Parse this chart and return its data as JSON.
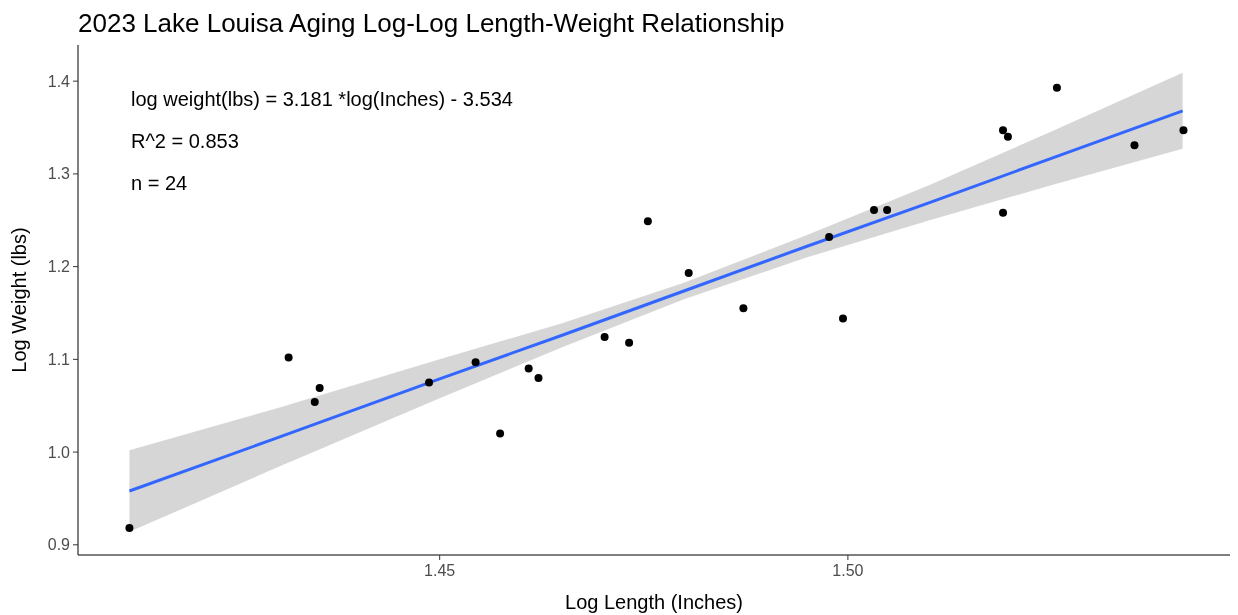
{
  "chart_data": {
    "type": "scatter",
    "title": "2023 Lake Louisa Aging Log-Log Length-Weight Relationship",
    "xlabel": "Log Length (Inches)",
    "ylabel": "Log Weight (lbs)",
    "annotations": [
      "log weight(lbs) = 3.181 *log(Inches) - 3.534",
      "R^2 = 0.853",
      "n = 24"
    ],
    "xlim": [
      1.4057,
      1.5468
    ],
    "ylim": [
      0.889,
      1.439
    ],
    "xticks": [
      {
        "value": 1.45,
        "label": "1.45"
      },
      {
        "value": 1.5,
        "label": "1.50"
      }
    ],
    "yticks": [
      {
        "value": 0.9,
        "label": "0.9"
      },
      {
        "value": 1.0,
        "label": "1.0"
      },
      {
        "value": 1.1,
        "label": "1.1"
      },
      {
        "value": 1.2,
        "label": "1.2"
      },
      {
        "value": 1.3,
        "label": "1.3"
      },
      {
        "value": 1.4,
        "label": "1.4"
      }
    ],
    "grid": false,
    "marker": "circle",
    "series": [
      {
        "type": "line",
        "color": "#3366ff",
        "x": [
          1.412,
          1.43,
          1.45,
          1.465,
          1.48,
          1.495,
          1.51,
          1.525,
          1.541
        ],
        "values": [
          0.958,
          1.015,
          1.079,
          1.126,
          1.174,
          1.222,
          1.269,
          1.317,
          1.368
        ],
        "lower": [
          0.914,
          0.983,
          1.058,
          1.113,
          1.165,
          1.21,
          1.25,
          1.288,
          1.327
        ],
        "upper": [
          1.002,
          1.047,
          1.1,
          1.139,
          1.183,
          1.234,
          1.288,
          1.346,
          1.409
        ],
        "marker": "none"
      },
      {
        "color": "#000000",
        "x": [
          1.412,
          1.4315,
          1.4347,
          1.4353,
          1.4487,
          1.4544,
          1.4574,
          1.4609,
          1.4621,
          1.4702,
          1.4732,
          1.4755,
          1.4805,
          1.4872,
          1.4977,
          1.4994,
          1.5032,
          1.5048,
          1.519,
          1.519,
          1.5196,
          1.5256,
          1.5351,
          1.5411
        ],
        "values": [
          0.918,
          1.102,
          1.054,
          1.069,
          1.075,
          1.097,
          1.02,
          1.09,
          1.08,
          1.124,
          1.118,
          1.249,
          1.193,
          1.155,
          1.232,
          1.144,
          1.261,
          1.261,
          1.347,
          1.258,
          1.34,
          1.393,
          1.331,
          1.347
        ]
      }
    ]
  }
}
